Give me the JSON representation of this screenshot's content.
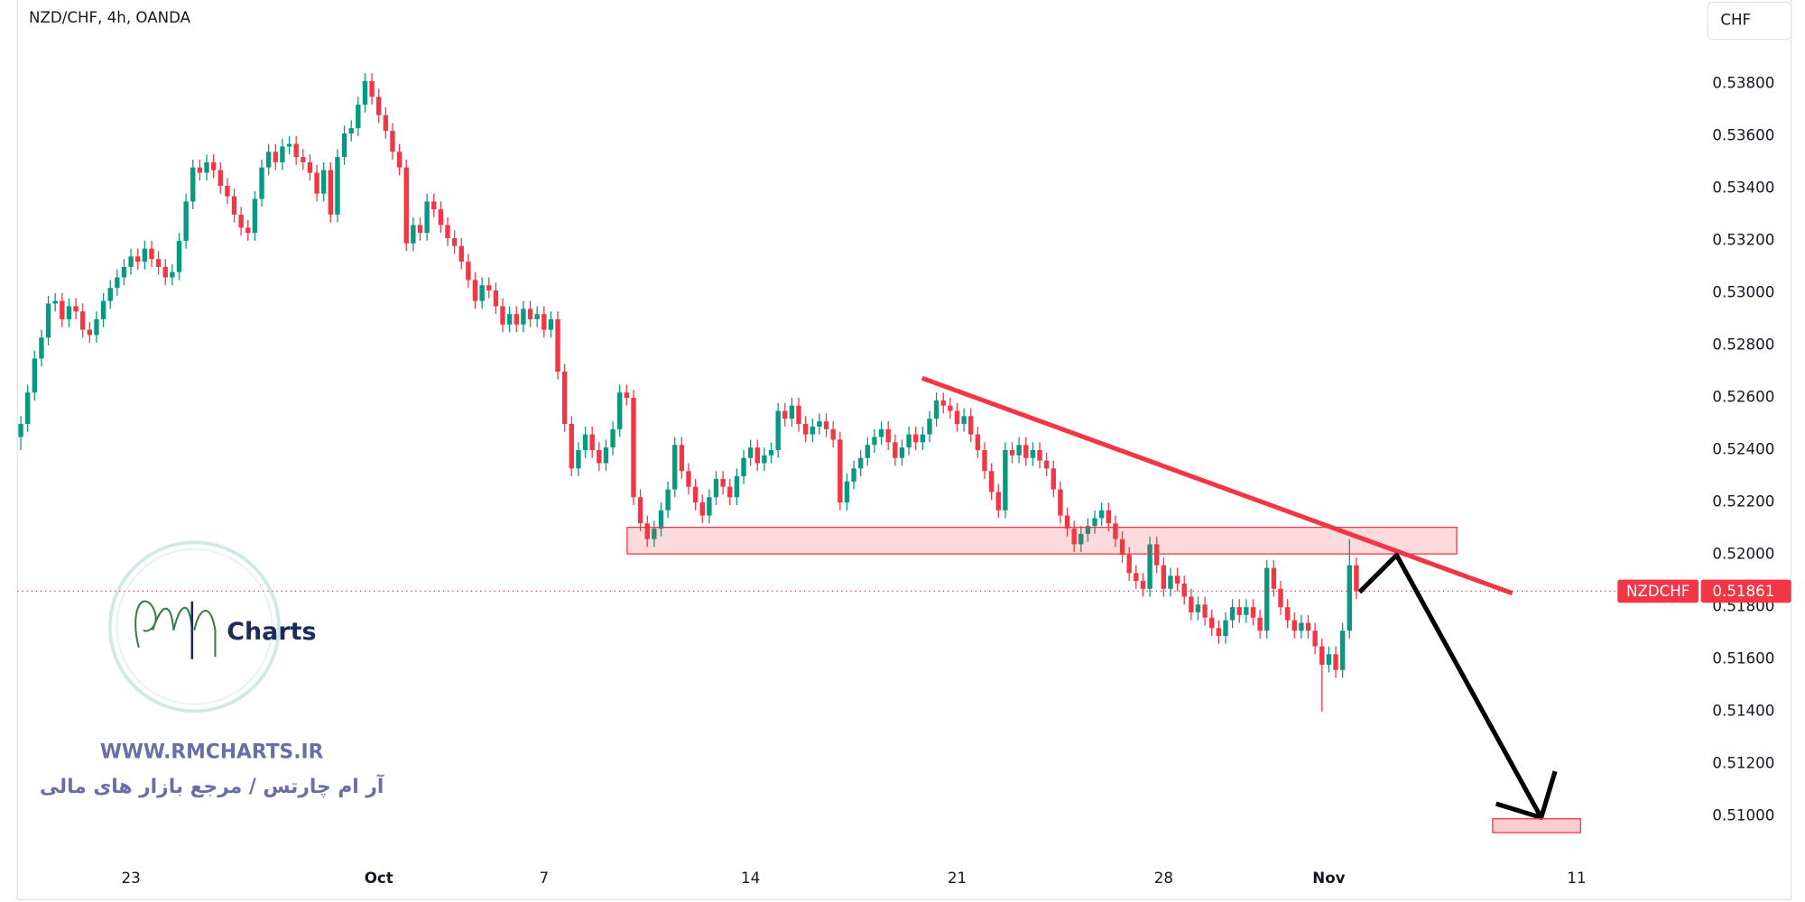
{
  "chart_data": {
    "type": "candlestick",
    "title": "NZD/CHF, 4h, OANDA",
    "currency_button": "CHF",
    "up_color": "#089981",
    "down_color": "#f23645",
    "grid": false,
    "ylim": [
      0.5085,
      0.5412
    ],
    "yticks": [
      {
        "value": 0.51,
        "label": "0.51000"
      },
      {
        "value": 0.512,
        "label": "0.51200"
      },
      {
        "value": 0.514,
        "label": "0.51400"
      },
      {
        "value": 0.516,
        "label": "0.51600"
      },
      {
        "value": 0.518,
        "label": "0.51800"
      },
      {
        "value": 0.52,
        "label": "0.52000"
      },
      {
        "value": 0.522,
        "label": "0.52200"
      },
      {
        "value": 0.524,
        "label": "0.52400"
      },
      {
        "value": 0.526,
        "label": "0.52600"
      },
      {
        "value": 0.528,
        "label": "0.52800"
      },
      {
        "value": 0.53,
        "label": "0.53000"
      },
      {
        "value": 0.532,
        "label": "0.53200"
      },
      {
        "value": 0.534,
        "label": "0.53400"
      },
      {
        "value": 0.536,
        "label": "0.53600"
      },
      {
        "value": 0.538,
        "label": "0.53800"
      }
    ],
    "last_price": {
      "symbol": "NZDCHF",
      "value": 0.51861
    },
    "categories": [
      null,
      null,
      null,
      null,
      null,
      null,
      null,
      null,
      null,
      null,
      null,
      null,
      null,
      null,
      null,
      null,
      "23",
      null,
      null,
      null,
      null,
      null,
      null,
      null,
      null,
      null,
      null,
      null,
      null,
      null,
      null,
      null,
      null,
      null,
      null,
      null,
      null,
      null,
      null,
      null,
      null,
      null,
      null,
      null,
      null,
      null,
      null,
      null,
      null,
      null,
      null,
      null,
      "Oct",
      null,
      null,
      null,
      null,
      null,
      null,
      null,
      null,
      null,
      null,
      null,
      null,
      null,
      null,
      null,
      null,
      null,
      null,
      null,
      null,
      null,
      null,
      null,
      "7",
      null,
      null,
      null,
      null,
      null,
      null,
      null,
      null,
      null,
      null,
      null,
      null,
      null,
      null,
      null,
      null,
      null,
      null,
      null,
      null,
      null,
      null,
      null,
      null,
      null,
      null,
      null,
      null,
      null,
      "14",
      null,
      null,
      null,
      null,
      null,
      null,
      null,
      null,
      null,
      null,
      null,
      null,
      null,
      null,
      null,
      null,
      null,
      null,
      null,
      null,
      null,
      null,
      null,
      null,
      null,
      null,
      null,
      null,
      null,
      "21",
      null,
      null,
      null,
      null,
      null,
      null,
      null,
      null,
      null,
      null,
      null,
      null,
      null,
      null,
      null,
      null,
      null,
      null,
      null,
      null,
      null,
      null,
      null,
      null,
      null,
      null,
      null,
      null,
      null,
      "28",
      null,
      null,
      null,
      null,
      null,
      null,
      null,
      null,
      null,
      null,
      null,
      null,
      null,
      null,
      null,
      null,
      null,
      null,
      null,
      null,
      null,
      null,
      null,
      "Nov",
      null,
      null,
      null,
      null,
      null,
      null,
      null,
      null,
      null,
      null,
      null,
      null,
      null,
      null,
      null,
      null,
      null,
      null,
      null,
      null,
      null,
      null,
      null,
      null,
      null,
      null,
      null,
      null,
      null,
      null,
      null,
      null,
      null,
      null,
      null,
      "11"
    ],
    "open": [
      0.5245,
      0.525,
      0.5262,
      0.5275,
      0.5283,
      0.5296,
      0.5297,
      0.529,
      0.5295,
      0.5293,
      0.5286,
      0.5284,
      0.529,
      0.5297,
      0.5302,
      0.5306,
      0.531,
      0.5314,
      0.5312,
      0.5317,
      0.5313,
      0.531,
      0.5306,
      0.5308,
      0.532,
      0.5335,
      0.5348,
      0.5346,
      0.535,
      0.5347,
      0.5341,
      0.5337,
      0.533,
      0.5325,
      0.5323,
      0.5336,
      0.5348,
      0.5354,
      0.535,
      0.5356,
      0.5357,
      0.5352,
      0.535,
      0.5346,
      0.5338,
      0.5347,
      0.533,
      0.5352,
      0.5361,
      0.5363,
      0.5372,
      0.5381,
      0.5375,
      0.5368,
      0.5362,
      0.5354,
      0.5348,
      0.5319,
      0.5326,
      0.5323,
      0.5335,
      0.5332,
      0.5326,
      0.5321,
      0.5318,
      0.5312,
      0.5305,
      0.5297,
      0.5303,
      0.5301,
      0.5295,
      0.5288,
      0.5292,
      0.5288,
      0.5294,
      0.529,
      0.5292,
      0.5286,
      0.529,
      0.527,
      0.525,
      0.5233,
      0.524,
      0.5246,
      0.524,
      0.5235,
      0.5241,
      0.5248,
      0.5262,
      0.526,
      0.5222,
      0.5212,
      0.5206,
      0.521,
      0.5217,
      0.5225,
      0.5242,
      0.5232,
      0.5226,
      0.522,
      0.5215,
      0.5222,
      0.5229,
      0.5226,
      0.5222,
      0.523,
      0.5237,
      0.5241,
      0.5235,
      0.5238,
      0.524,
      0.5255,
      0.5252,
      0.5257,
      0.525,
      0.5246,
      0.5249,
      0.5251,
      0.5248,
      0.5244,
      0.522,
      0.5228,
      0.5233,
      0.5237,
      0.5242,
      0.5245,
      0.5248,
      0.5243,
      0.5237,
      0.5241,
      0.5246,
      0.5243,
      0.5246,
      0.5252,
      0.5259,
      0.5257,
      0.5255,
      0.525,
      0.5253,
      0.5246,
      0.524,
      0.5232,
      0.5224,
      0.5217,
      0.524,
      0.5238,
      0.5242,
      0.5237,
      0.524,
      0.5236,
      0.5233,
      0.5225,
      0.5215,
      0.521,
      0.5204,
      0.5208,
      0.5211,
      0.5214,
      0.5217,
      0.5212,
      0.5206,
      0.52,
      0.5193,
      0.519,
      0.5187,
      0.5204,
      0.5196,
      0.5187,
      0.5192,
      0.5189,
      0.5184,
      0.5178,
      0.5181,
      0.5176,
      0.5172,
      0.5169,
      0.5175,
      0.518,
      0.5177,
      0.518,
      0.5176,
      0.5171,
      0.5195,
      0.5187,
      0.518,
      0.5175,
      0.5171,
      0.5174,
      0.5171,
      0.5165,
      0.5158,
      0.5162,
      0.5156,
      0.5171,
      0.5196,
      null,
      null,
      null,
      null,
      null,
      null,
      null,
      null,
      null,
      null,
      null,
      null,
      null,
      null,
      null,
      null,
      null,
      null,
      null,
      null,
      null,
      null,
      null,
      null,
      null,
      null,
      null,
      null,
      null,
      null,
      null,
      null
    ],
    "high": [
      0.5253,
      0.5265,
      0.5278,
      0.5286,
      0.5299,
      0.53,
      0.53,
      0.5298,
      0.5298,
      0.5296,
      0.5289,
      0.5293,
      0.53,
      0.5305,
      0.5309,
      0.5313,
      0.5317,
      0.5317,
      0.532,
      0.532,
      0.5316,
      0.5313,
      0.5311,
      0.5323,
      0.5338,
      0.5351,
      0.5351,
      0.5353,
      0.5353,
      0.535,
      0.5344,
      0.534,
      0.5333,
      0.5328,
      0.5339,
      0.5351,
      0.5357,
      0.5357,
      0.5359,
      0.536,
      0.536,
      0.5355,
      0.5353,
      0.5349,
      0.535,
      0.535,
      0.5355,
      0.5364,
      0.5366,
      0.5375,
      0.5384,
      0.5384,
      0.5378,
      0.5371,
      0.5365,
      0.5357,
      0.5351,
      0.5329,
      0.5329,
      0.5338,
      0.5338,
      0.5335,
      0.5329,
      0.5324,
      0.5321,
      0.5315,
      0.5308,
      0.5306,
      0.5306,
      0.5304,
      0.5298,
      0.5295,
      0.5295,
      0.5297,
      0.5297,
      0.5295,
      0.5295,
      0.5293,
      0.5293,
      0.5273,
      0.5253,
      0.5243,
      0.5249,
      0.5249,
      0.5243,
      0.5244,
      0.5251,
      0.5265,
      0.5265,
      0.5263,
      0.5225,
      0.5215,
      0.5213,
      0.522,
      0.5228,
      0.5245,
      0.5245,
      0.5235,
      0.5229,
      0.5223,
      0.5225,
      0.5232,
      0.5232,
      0.5229,
      0.5233,
      0.524,
      0.5244,
      0.5244,
      0.5241,
      0.5243,
      0.5258,
      0.5258,
      0.526,
      0.526,
      0.5253,
      0.5252,
      0.5254,
      0.5254,
      0.5251,
      0.5247,
      0.5231,
      0.5236,
      0.524,
      0.5245,
      0.5248,
      0.5251,
      0.5251,
      0.5246,
      0.5244,
      0.5249,
      0.5249,
      0.5249,
      0.5255,
      0.5262,
      0.5262,
      0.526,
      0.5258,
      0.5256,
      0.5256,
      0.5249,
      0.5243,
      0.5235,
      0.5227,
      0.5243,
      0.5243,
      0.5245,
      0.5245,
      0.5243,
      0.5243,
      0.5239,
      0.5236,
      0.5228,
      0.5218,
      0.5213,
      0.5211,
      0.5214,
      0.5217,
      0.522,
      0.522,
      0.5215,
      0.5209,
      0.5203,
      0.5196,
      0.5193,
      0.5207,
      0.5207,
      0.5199,
      0.5195,
      0.5195,
      0.5192,
      0.5187,
      0.5184,
      0.5184,
      0.5179,
      0.5175,
      0.5178,
      0.5183,
      0.5183,
      0.5183,
      0.5183,
      0.5179,
      0.5198,
      0.5198,
      0.519,
      0.5183,
      0.5178,
      0.5177,
      0.5177,
      0.5174,
      0.5168,
      0.5165,
      0.5165,
      0.5174,
      0.5206,
      0.5199,
      null,
      null,
      null,
      null,
      null,
      null,
      null,
      null,
      null,
      null,
      null,
      null,
      null,
      null,
      null,
      null,
      null,
      null,
      null,
      null,
      null,
      null,
      null,
      null,
      null,
      null,
      null,
      null,
      null,
      null,
      null,
      null
    ],
    "low": [
      0.524,
      0.5247,
      0.5259,
      0.5272,
      0.528,
      0.5293,
      0.5287,
      0.5287,
      0.529,
      0.5283,
      0.5281,
      0.5281,
      0.5287,
      0.5294,
      0.5299,
      0.5303,
      0.5307,
      0.5309,
      0.5309,
      0.531,
      0.5307,
      0.5303,
      0.5303,
      0.5305,
      0.5317,
      0.5332,
      0.5343,
      0.5343,
      0.5344,
      0.5338,
      0.5334,
      0.5327,
      0.5322,
      0.532,
      0.532,
      0.5333,
      0.5345,
      0.5347,
      0.5347,
      0.5353,
      0.5349,
      0.5347,
      0.5343,
      0.5335,
      0.5335,
      0.5327,
      0.5327,
      0.5349,
      0.5358,
      0.536,
      0.5369,
      0.5372,
      0.5365,
      0.5359,
      0.5351,
      0.5345,
      0.5316,
      0.5316,
      0.532,
      0.532,
      0.5329,
      0.5323,
      0.5318,
      0.5315,
      0.5309,
      0.5302,
      0.5294,
      0.5294,
      0.5298,
      0.5292,
      0.5285,
      0.5285,
      0.5285,
      0.5285,
      0.5287,
      0.5287,
      0.5283,
      0.5283,
      0.5267,
      0.5247,
      0.523,
      0.523,
      0.5237,
      0.5237,
      0.5232,
      0.5232,
      0.5238,
      0.5245,
      0.5257,
      0.5219,
      0.5209,
      0.5203,
      0.5203,
      0.5207,
      0.5214,
      0.5222,
      0.5229,
      0.5223,
      0.5217,
      0.5212,
      0.5212,
      0.5219,
      0.5223,
      0.5219,
      0.5219,
      0.5227,
      0.5234,
      0.5232,
      0.5232,
      0.5235,
      0.5237,
      0.5249,
      0.5249,
      0.5247,
      0.5243,
      0.5243,
      0.5246,
      0.5245,
      0.5241,
      0.5217,
      0.5217,
      0.5225,
      0.523,
      0.5234,
      0.5239,
      0.5242,
      0.524,
      0.5234,
      0.5234,
      0.5238,
      0.524,
      0.524,
      0.5243,
      0.5249,
      0.5254,
      0.5252,
      0.5247,
      0.5247,
      0.5243,
      0.5237,
      0.5229,
      0.5221,
      0.5214,
      0.5214,
      0.5235,
      0.5235,
      0.5234,
      0.5234,
      0.5233,
      0.523,
      0.5222,
      0.5212,
      0.5207,
      0.5201,
      0.5201,
      0.5205,
      0.5208,
      0.5211,
      0.5209,
      0.5203,
      0.5197,
      0.519,
      0.5187,
      0.5184,
      0.5184,
      0.5193,
      0.5184,
      0.5184,
      0.5186,
      0.5181,
      0.5175,
      0.5175,
      0.5173,
      0.5169,
      0.5166,
      0.5166,
      0.5172,
      0.5174,
      0.5174,
      0.5173,
      0.5168,
      0.5168,
      0.5184,
      0.5177,
      0.5172,
      0.5168,
      0.5168,
      0.5168,
      0.5162,
      0.514,
      0.5155,
      0.5153,
      0.5153,
      0.5168,
      0.5183,
      null,
      null,
      null,
      null,
      null,
      null,
      null,
      null,
      null,
      null,
      null,
      null,
      null,
      null,
      null,
      null,
      null,
      null,
      null,
      null,
      null,
      null,
      null,
      null,
      null,
      null,
      null,
      null,
      null,
      null,
      null,
      null
    ],
    "close": [
      0.525,
      0.5262,
      0.5275,
      0.5283,
      0.5296,
      0.5297,
      0.529,
      0.5295,
      0.5293,
      0.5286,
      0.5284,
      0.529,
      0.5297,
      0.5302,
      0.5306,
      0.531,
      0.5314,
      0.5312,
      0.5317,
      0.5313,
      0.531,
      0.5306,
      0.5308,
      0.532,
      0.5335,
      0.5348,
      0.5346,
      0.535,
      0.5347,
      0.5341,
      0.5337,
      0.533,
      0.5325,
      0.5323,
      0.5336,
      0.5348,
      0.5354,
      0.535,
      0.5356,
      0.5357,
      0.5352,
      0.535,
      0.5346,
      0.5338,
      0.5347,
      0.533,
      0.5352,
      0.5361,
      0.5363,
      0.5372,
      0.5381,
      0.5375,
      0.5368,
      0.5362,
      0.5354,
      0.5348,
      0.5319,
      0.5326,
      0.5323,
      0.5335,
      0.5332,
      0.5326,
      0.5321,
      0.5318,
      0.5312,
      0.5305,
      0.5297,
      0.5303,
      0.5301,
      0.5295,
      0.5288,
      0.5292,
      0.5288,
      0.5294,
      0.529,
      0.5292,
      0.5286,
      0.529,
      0.527,
      0.525,
      0.5233,
      0.524,
      0.5246,
      0.524,
      0.5235,
      0.5241,
      0.5248,
      0.5262,
      0.526,
      0.5222,
      0.5212,
      0.5206,
      0.521,
      0.5217,
      0.5225,
      0.5242,
      0.5232,
      0.5226,
      0.522,
      0.5215,
      0.5222,
      0.5229,
      0.5226,
      0.5222,
      0.523,
      0.5237,
      0.5241,
      0.5235,
      0.5238,
      0.524,
      0.5255,
      0.5252,
      0.5257,
      0.525,
      0.5246,
      0.5249,
      0.5251,
      0.5248,
      0.5244,
      0.522,
      0.5228,
      0.5233,
      0.5237,
      0.5242,
      0.5245,
      0.5248,
      0.5243,
      0.5237,
      0.5241,
      0.5246,
      0.5243,
      0.5246,
      0.5252,
      0.5259,
      0.5257,
      0.5255,
      0.525,
      0.5253,
      0.5246,
      0.524,
      0.5232,
      0.5224,
      0.5217,
      0.524,
      0.5238,
      0.5242,
      0.5237,
      0.524,
      0.5236,
      0.5233,
      0.5225,
      0.5215,
      0.521,
      0.5204,
      0.5208,
      0.5211,
      0.5214,
      0.5217,
      0.5212,
      0.5206,
      0.52,
      0.5193,
      0.519,
      0.5187,
      0.5204,
      0.5196,
      0.5187,
      0.5192,
      0.5189,
      0.5184,
      0.5178,
      0.5181,
      0.5176,
      0.5172,
      0.5169,
      0.5175,
      0.518,
      0.5177,
      0.518,
      0.5176,
      0.5171,
      0.5195,
      0.5187,
      0.518,
      0.5175,
      0.5171,
      0.5174,
      0.5171,
      0.5165,
      0.5158,
      0.5162,
      0.5156,
      0.5171,
      0.5196,
      0.51861,
      null,
      null,
      null,
      null,
      null,
      null,
      null,
      null,
      null,
      null,
      null,
      null,
      null,
      null,
      null,
      null,
      null,
      null,
      null,
      null,
      null,
      null,
      null,
      null,
      null,
      null,
      null,
      null,
      null,
      null,
      null,
      null
    ]
  },
  "watermark": {
    "brand": "Charts",
    "website": "WWW.RMCHARTS.IR",
    "tagline": "آر ام چارتس / مرجع بازار های مالی"
  }
}
